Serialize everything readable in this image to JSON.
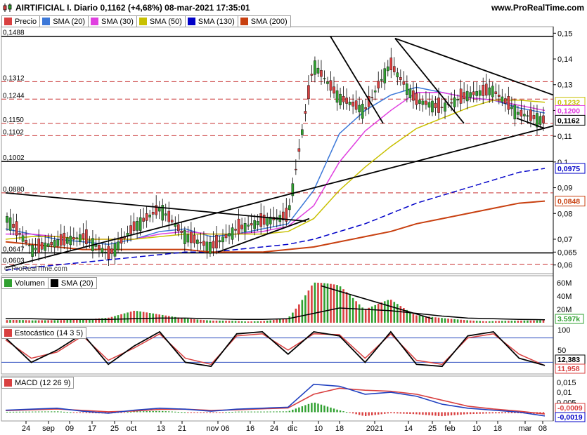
{
  "header": {
    "title": "AIRTIFICIAL I. Diario 0,1162 (+4,68%) 08-mar-2021 17:35:01",
    "website": "www.ProRealTime.com",
    "watermark": "© ProRealTime.com"
  },
  "price_panel": {
    "legend": [
      {
        "label": "Precio",
        "color": "#d94040"
      },
      {
        "label": "SMA (20)",
        "color": "#3c78d8"
      },
      {
        "label": "SMA (30)",
        "color": "#e040e0"
      },
      {
        "label": "SMA (50)",
        "color": "#c8c000"
      },
      {
        "label": "SMA (130)",
        "color": "#0000c8"
      },
      {
        "label": "SMA (200)",
        "color": "#c84010"
      }
    ],
    "level_labels": [
      "0,1488",
      "0,1312",
      "0,1244",
      "0,1150",
      "0,1102",
      "0,1002",
      "0,0880",
      "0,0647",
      "0,0603"
    ],
    "axis_ticks": [
      "0,15",
      "0,14",
      "0,13",
      "0,12",
      "0,11",
      "0,1",
      "0,09",
      "0,08",
      "0,07",
      "0,065",
      "0,06"
    ],
    "value_badges": [
      {
        "text": "0,1232",
        "color": "#c8c000"
      },
      {
        "text": "0,1200",
        "color": "#e040e0"
      },
      {
        "text": "0,1162",
        "color": "#000000"
      },
      {
        "text": "0,0975",
        "color": "#0000c8"
      },
      {
        "text": "0,0848",
        "color": "#c84010"
      }
    ]
  },
  "volume_panel": {
    "legend": [
      {
        "label": "Volumen",
        "color": "#30a030"
      },
      {
        "label": "SMA (20)",
        "color": "#000000"
      }
    ],
    "axis_ticks": [
      "60M",
      "40M",
      "20M"
    ],
    "badge": "3.597k"
  },
  "stoch_panel": {
    "legend": [
      {
        "label": "Estocástico (14 3 5)",
        "color": "#d94040"
      }
    ],
    "axis_ticks": [
      "100",
      "50",
      "0"
    ],
    "badges": [
      {
        "text": "12,383",
        "color": "#000000"
      },
      {
        "text": "11,958",
        "color": "#d94040"
      }
    ]
  },
  "macd_panel": {
    "legend": [
      {
        "label": "MACD (12 26 9)",
        "color": "#d94040"
      }
    ],
    "axis_ticks": [
      "0,015",
      "0,01",
      "0,005"
    ],
    "badges": [
      {
        "text": "-0,0009",
        "color": "#d94040"
      },
      {
        "text": "-0,0019",
        "color": "#0000c8"
      }
    ]
  },
  "time_axis": [
    "24",
    "sep",
    "09",
    "17",
    "25",
    "oct",
    "13",
    "21",
    "nov 06",
    "16",
    "24",
    "dic",
    "10",
    "18",
    "2021",
    "14",
    "25",
    "feb",
    "10",
    "18",
    "mar",
    "08"
  ],
  "chart_data": [
    {
      "type": "line",
      "title": "AIRTIFICIAL I. Diario",
      "x": [
        "24",
        "sep",
        "09",
        "17",
        "25",
        "oct",
        "13",
        "21",
        "nov 06",
        "16",
        "24",
        "dic",
        "10",
        "18",
        "2021",
        "14",
        "25",
        "feb",
        "10",
        "18",
        "mar",
        "08"
      ],
      "series": [
        {
          "name": "Precio",
          "values": [
            0.078,
            0.066,
            0.069,
            0.071,
            0.064,
            0.075,
            0.082,
            0.071,
            0.067,
            0.074,
            0.077,
            0.079,
            0.138,
            0.125,
            0.12,
            0.138,
            0.124,
            0.121,
            0.126,
            0.128,
            0.119,
            0.1162
          ]
        },
        {
          "name": "SMA (20)",
          "values": [
            0.074,
            0.072,
            0.07,
            0.069,
            0.068,
            0.07,
            0.073,
            0.074,
            0.071,
            0.072,
            0.074,
            0.076,
            0.089,
            0.111,
            0.12,
            0.126,
            0.129,
            0.127,
            0.125,
            0.124,
            0.121,
            0.119
          ]
        },
        {
          "name": "SMA (30)",
          "values": [
            0.072,
            0.072,
            0.071,
            0.07,
            0.07,
            0.07,
            0.072,
            0.073,
            0.072,
            0.072,
            0.073,
            0.075,
            0.083,
            0.1,
            0.112,
            0.12,
            0.127,
            0.127,
            0.125,
            0.124,
            0.122,
            0.12
          ]
        },
        {
          "name": "SMA (50)",
          "values": [
            0.07,
            0.071,
            0.071,
            0.07,
            0.07,
            0.07,
            0.071,
            0.072,
            0.072,
            0.072,
            0.072,
            0.073,
            0.078,
            0.089,
            0.098,
            0.106,
            0.113,
            0.117,
            0.121,
            0.124,
            0.124,
            0.1232
          ]
        },
        {
          "name": "SMA (130)",
          "values": [
            0.058,
            0.059,
            0.06,
            0.061,
            0.062,
            0.063,
            0.064,
            0.065,
            0.065,
            0.066,
            0.067,
            0.068,
            0.07,
            0.073,
            0.076,
            0.08,
            0.084,
            0.087,
            0.09,
            0.093,
            0.096,
            0.0975
          ]
        },
        {
          "name": "SMA (200)",
          "values": [
            0.069,
            0.068,
            0.067,
            0.066,
            0.066,
            0.066,
            0.066,
            0.066,
            0.065,
            0.065,
            0.065,
            0.066,
            0.067,
            0.069,
            0.071,
            0.073,
            0.076,
            0.078,
            0.08,
            0.082,
            0.084,
            0.0848
          ]
        }
      ],
      "ylim": [
        0.058,
        0.152
      ]
    },
    {
      "type": "bar",
      "title": "Volumen",
      "categories": [
        "24",
        "sep",
        "09",
        "17",
        "25",
        "oct",
        "13",
        "21",
        "nov 06",
        "16",
        "24",
        "dic",
        "10",
        "18",
        "2021",
        "14",
        "25",
        "feb",
        "10",
        "18",
        "mar",
        "08"
      ],
      "series": [
        {
          "name": "Volumen",
          "values": [
            10,
            5,
            4,
            4,
            6,
            14,
            10,
            6,
            4,
            5,
            4,
            8,
            55,
            45,
            15,
            28,
            10,
            8,
            6,
            5,
            4,
            3.6
          ]
        },
        {
          "name": "SMA (20)",
          "values": [
            6,
            6,
            5,
            5,
            5,
            6,
            7,
            7,
            6,
            5,
            5,
            6,
            14,
            22,
            20,
            18,
            14,
            10,
            7,
            6,
            5,
            4.5
          ]
        }
      ],
      "ylim": [
        0,
        65
      ]
    },
    {
      "type": "line",
      "title": "Estocástico (14 3 5)",
      "x": [
        "24",
        "sep",
        "09",
        "17",
        "25",
        "oct",
        "13",
        "21",
        "nov 06",
        "16",
        "24",
        "dic",
        "10",
        "18",
        "2021",
        "14",
        "25",
        "feb",
        "10",
        "18",
        "mar",
        "08"
      ],
      "series": [
        {
          "name": "%K",
          "values": [
            80,
            20,
            50,
            90,
            15,
            60,
            95,
            20,
            10,
            90,
            95,
            40,
            95,
            85,
            20,
            95,
            15,
            10,
            85,
            95,
            30,
            12.383
          ]
        },
        {
          "name": "%D",
          "values": [
            75,
            30,
            45,
            85,
            25,
            55,
            90,
            30,
            15,
            85,
            90,
            50,
            90,
            88,
            30,
            90,
            25,
            15,
            80,
            90,
            40,
            11.958
          ]
        }
      ],
      "ylim": [
        0,
        100
      ]
    },
    {
      "type": "line",
      "title": "MACD (12 26 9)",
      "x": [
        "24",
        "sep",
        "09",
        "17",
        "25",
        "oct",
        "13",
        "21",
        "nov 06",
        "16",
        "24",
        "dic",
        "10",
        "18",
        "2021",
        "14",
        "25",
        "feb",
        "10",
        "18",
        "mar",
        "08"
      ],
      "series": [
        {
          "name": "MACD",
          "values": [
            0.001,
            0.0015,
            0.002,
            0.0005,
            -0.0005,
            0.001,
            0.002,
            0.0015,
            0.0005,
            0.0015,
            0.002,
            0.0025,
            0.014,
            0.013,
            0.009,
            0.01,
            0.008,
            0.004,
            0.002,
            0.001,
            0.0,
            -0.0019
          ]
        },
        {
          "name": "Señal",
          "values": [
            0.0008,
            0.0012,
            0.0016,
            0.0009,
            0.0002,
            0.0006,
            0.0014,
            0.0015,
            0.0009,
            0.0012,
            0.0017,
            0.0021,
            0.009,
            0.012,
            0.011,
            0.0105,
            0.009,
            0.006,
            0.003,
            0.0016,
            0.0005,
            -0.0009
          ]
        }
      ],
      "ylim": [
        -0.003,
        0.016
      ]
    }
  ]
}
